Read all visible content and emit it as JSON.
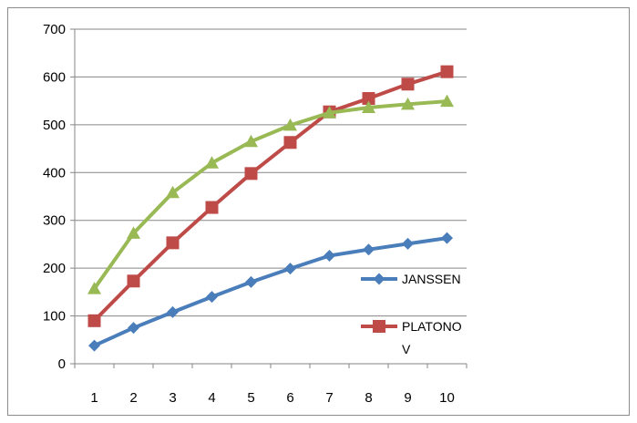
{
  "chart_data": {
    "type": "line",
    "x": [
      1,
      2,
      3,
      4,
      5,
      6,
      7,
      8,
      9,
      10
    ],
    "ylim": [
      0,
      700
    ],
    "yticks": [
      0,
      100,
      200,
      300,
      400,
      500,
      600,
      700
    ],
    "grid": "horizontal",
    "legend_position": "right",
    "series": [
      {
        "name": "JANSSEN",
        "color": "#4a7ebb",
        "marker": "diamond",
        "values": [
          38,
          75,
          108,
          140,
          171,
          199,
          226,
          239,
          251,
          263
        ]
      },
      {
        "name": "PLATONOV",
        "name_lines": [
          "PLATONO",
          "V"
        ],
        "color": "#be4b48",
        "marker": "square",
        "values": [
          90,
          173,
          253,
          327,
          398,
          463,
          527,
          555,
          585,
          611
        ]
      },
      {
        "name": "",
        "color": "#98b954",
        "marker": "triangle",
        "in_legend": false,
        "values": [
          157,
          273,
          358,
          420,
          465,
          499,
          525,
          536,
          543,
          549
        ]
      }
    ]
  }
}
